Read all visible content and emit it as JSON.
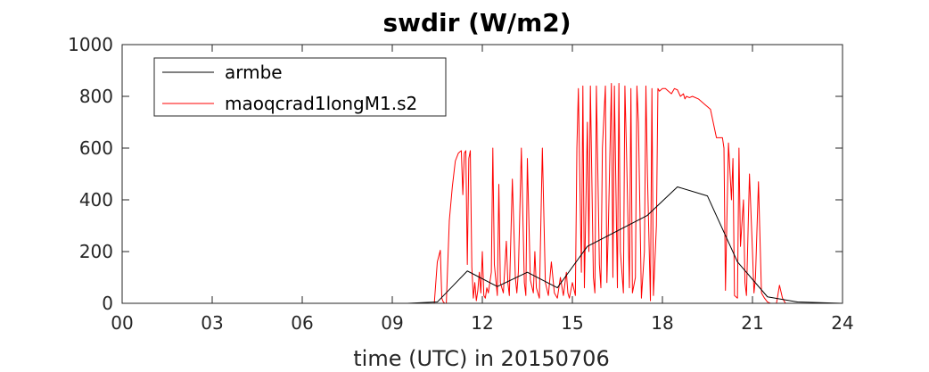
{
  "chart_data": {
    "type": "line",
    "title": "swdir  (W/m2)",
    "xlabel": "time (UTC) in 20150706",
    "ylabel": "",
    "xlim": [
      0,
      24
    ],
    "ylim": [
      0,
      1000
    ],
    "xticks": [
      0,
      3,
      6,
      9,
      12,
      15,
      18,
      21,
      24
    ],
    "xtick_labels": [
      "00",
      "03",
      "06",
      "09",
      "12",
      "15",
      "18",
      "21",
      "24"
    ],
    "yticks": [
      0,
      200,
      400,
      600,
      800,
      1000
    ],
    "ytick_labels": [
      "0",
      "200",
      "400",
      "600",
      "800",
      "1000"
    ],
    "grid": false,
    "legend_position": "top-left",
    "series": [
      {
        "name": "armbe",
        "color": "#000000",
        "x": [
          0,
          9.5,
          10.5,
          11.5,
          12.5,
          13.5,
          14.5,
          15.5,
          16.5,
          17.5,
          18.5,
          19.5,
          20.5,
          21.5,
          22.5,
          24
        ],
        "y": [
          0,
          0,
          5,
          125,
          65,
          120,
          60,
          220,
          280,
          340,
          450,
          415,
          160,
          25,
          5,
          0
        ]
      },
      {
        "name": "maoqcrad1longM1.s2",
        "color": "#ff0000",
        "x": [
          0,
          10.4,
          10.5,
          10.6,
          10.65,
          10.7,
          10.75,
          10.8,
          10.9,
          11.0,
          11.1,
          11.2,
          11.3,
          11.35,
          11.4,
          11.45,
          11.5,
          11.55,
          11.6,
          11.65,
          11.7,
          11.75,
          11.8,
          11.85,
          11.9,
          11.95,
          12.0,
          12.05,
          12.1,
          12.15,
          12.2,
          12.3,
          12.35,
          12.4,
          12.5,
          12.55,
          12.6,
          12.7,
          12.8,
          12.85,
          12.9,
          13.0,
          13.1,
          13.15,
          13.2,
          13.3,
          13.4,
          13.45,
          13.5,
          13.6,
          13.7,
          13.75,
          13.8,
          13.9,
          14.0,
          14.1,
          14.2,
          14.3,
          14.4,
          14.5,
          14.6,
          14.7,
          14.8,
          14.85,
          14.9,
          15.0,
          15.1,
          15.15,
          15.2,
          15.3,
          15.35,
          15.4,
          15.5,
          15.55,
          15.6,
          15.7,
          15.75,
          15.8,
          15.9,
          15.95,
          16.0,
          16.1,
          16.15,
          16.2,
          16.3,
          16.35,
          16.4,
          16.5,
          16.55,
          16.6,
          16.7,
          16.75,
          16.8,
          16.9,
          16.95,
          17.0,
          17.1,
          17.15,
          17.2,
          17.3,
          17.4,
          17.45,
          17.5,
          17.6,
          17.65,
          17.7,
          17.8,
          17.85,
          17.9,
          18.0,
          18.1,
          18.2,
          18.3,
          18.4,
          18.5,
          18.6,
          18.7,
          18.75,
          18.8,
          18.9,
          19.0,
          19.2,
          19.4,
          19.6,
          19.8,
          20.0,
          20.05,
          20.1,
          20.2,
          20.3,
          20.35,
          20.4,
          20.5,
          20.55,
          20.6,
          20.7,
          20.75,
          20.8,
          20.9,
          21.0,
          21.05,
          21.1,
          21.2,
          21.3,
          21.4,
          21.5,
          21.6,
          21.8,
          21.9,
          22.0,
          22.1,
          22.2,
          24
        ],
        "y": [
          0,
          0,
          160,
          205,
          20,
          5,
          0,
          0,
          320,
          450,
          550,
          580,
          590,
          420,
          580,
          590,
          150,
          560,
          590,
          140,
          20,
          80,
          10,
          50,
          120,
          40,
          200,
          30,
          20,
          60,
          40,
          120,
          600,
          150,
          30,
          460,
          80,
          40,
          240,
          80,
          30,
          480,
          100,
          40,
          120,
          600,
          80,
          30,
          560,
          90,
          40,
          200,
          60,
          20,
          600,
          80,
          30,
          160,
          40,
          20,
          100,
          30,
          120,
          40,
          20,
          80,
          30,
          600,
          830,
          120,
          840,
          60,
          700,
          200,
          840,
          100,
          40,
          840,
          150,
          60,
          600,
          840,
          80,
          300,
          850,
          100,
          840,
          60,
          850,
          200,
          40,
          840,
          600,
          60,
          830,
          40,
          100,
          840,
          700,
          20,
          200,
          840,
          500,
          10,
          830,
          30,
          300,
          830,
          820,
          830,
          830,
          820,
          810,
          830,
          825,
          800,
          810,
          790,
          800,
          795,
          800,
          790,
          770,
          750,
          640,
          640,
          600,
          50,
          620,
          400,
          560,
          30,
          20,
          600,
          220,
          400,
          80,
          30,
          500,
          200,
          40,
          100,
          470,
          40,
          20,
          5,
          0,
          0,
          70,
          20,
          0,
          0,
          0
        ]
      }
    ]
  }
}
